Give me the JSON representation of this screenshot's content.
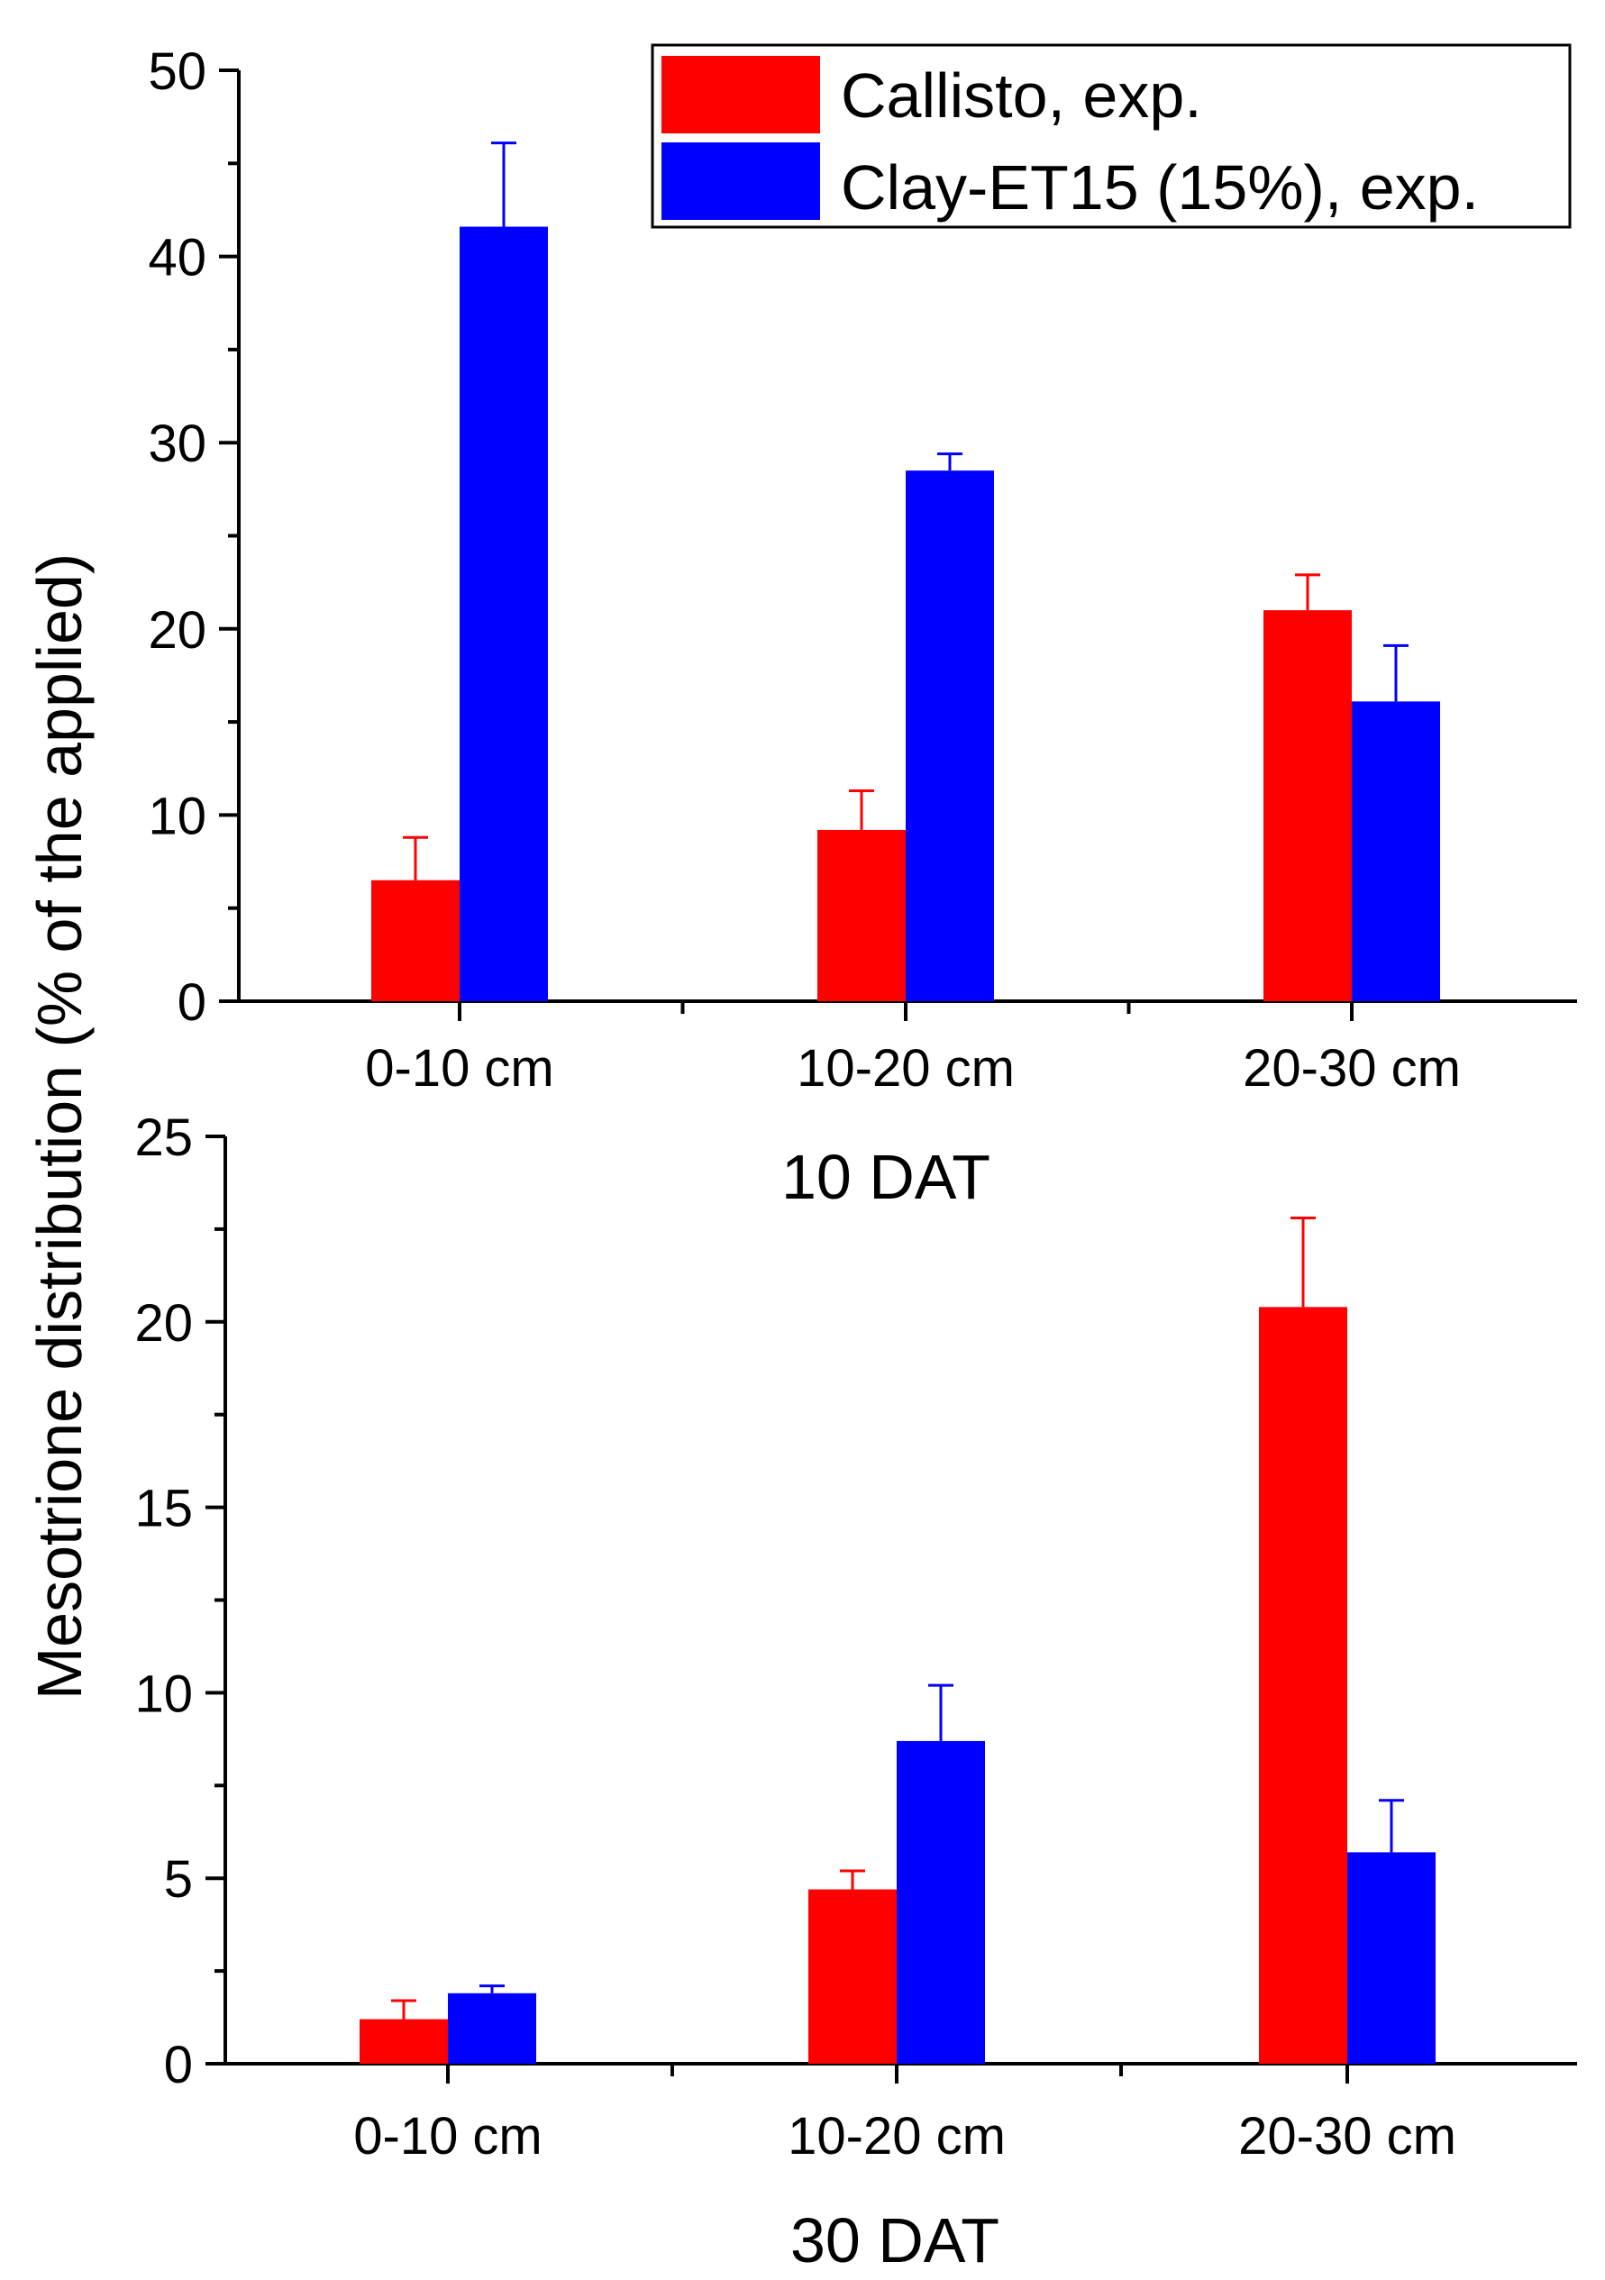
{
  "figure": {
    "ylabel": "Mesotrione distribution (% of the applied)"
  },
  "legend": {
    "placement": "top-right",
    "entries": [
      {
        "label": "Callisto, exp.",
        "color": "#ff0000"
      },
      {
        "label": "Clay-ET15 (15%), exp.",
        "color": "#0000ff"
      }
    ]
  },
  "chart_data": [
    {
      "type": "bar",
      "title": "10 DAT",
      "categories": [
        "0-10 cm",
        "10-20 cm",
        "20-30 cm"
      ],
      "ylim": [
        0,
        50
      ],
      "yticks": [
        "0",
        "10",
        "20",
        "30",
        "40",
        "50"
      ],
      "grid": false,
      "series": [
        {
          "name": "Callisto, exp.",
          "color": "#ff0000",
          "values": [
            6.5,
            9.2,
            21.0
          ],
          "errors": [
            2.3,
            2.1,
            1.9
          ]
        },
        {
          "name": "Clay-ET15 (15%), exp.",
          "color": "#0000ff",
          "values": [
            41.6,
            28.5,
            16.1
          ],
          "errors": [
            4.5,
            0.9,
            3.0
          ]
        }
      ]
    },
    {
      "type": "bar",
      "title": "30 DAT",
      "categories": [
        "0-10 cm",
        "10-20 cm",
        "20-30 cm"
      ],
      "ylim": [
        0,
        25
      ],
      "yticks": [
        "0",
        "5",
        "10",
        "15",
        "20",
        "25"
      ],
      "grid": false,
      "series": [
        {
          "name": "Callisto, exp.",
          "color": "#ff0000",
          "values": [
            1.2,
            4.7,
            20.4
          ],
          "errors": [
            0.5,
            0.5,
            2.4
          ]
        },
        {
          "name": "Clay-ET15 (15%), exp.",
          "color": "#0000ff",
          "values": [
            1.9,
            8.7,
            5.7
          ],
          "errors": [
            0.2,
            1.5,
            1.4
          ]
        }
      ]
    }
  ]
}
